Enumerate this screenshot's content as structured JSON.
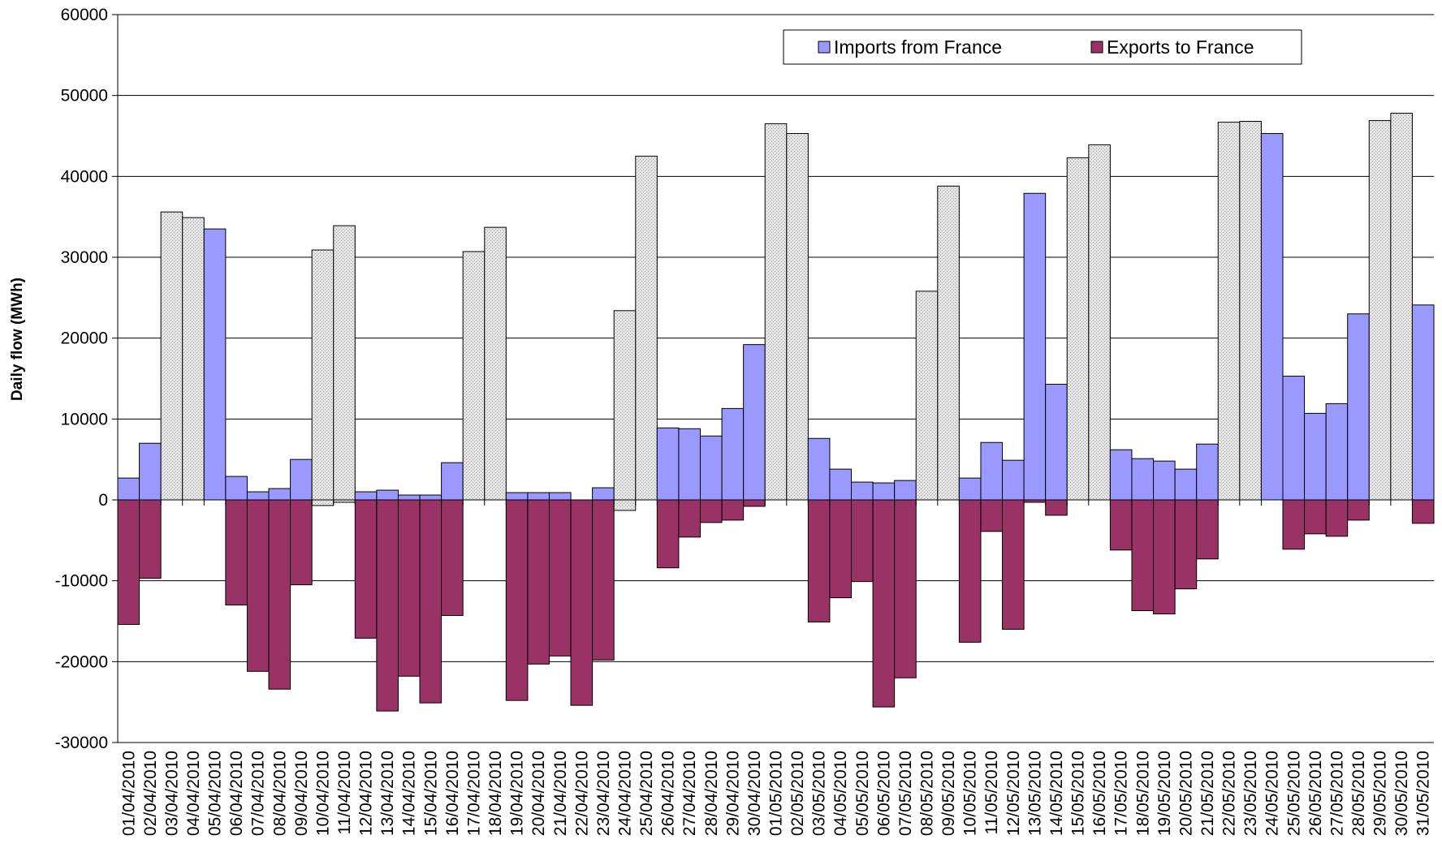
{
  "chart_data": {
    "type": "bar",
    "title": "",
    "xlabel": "",
    "ylabel": "Daily flow (MWh)",
    "ylim": [
      -30000,
      60000
    ],
    "yticks": [
      -30000,
      -20000,
      -10000,
      0,
      10000,
      20000,
      30000,
      40000,
      50000,
      60000
    ],
    "ytick_labels": [
      "-30000",
      "-20000",
      "-10000",
      "0",
      "10000",
      "20000",
      "30000",
      "40000",
      "50000",
      "60000"
    ],
    "grid": true,
    "legend_position": "top-right",
    "colors": {
      "imports": "#9999ff",
      "exports": "#993366",
      "highlight": "#d9d9d9"
    },
    "categories": [
      "01/04/2010",
      "02/04/2010",
      "03/04/2010",
      "04/04/2010",
      "05/04/2010",
      "06/04/2010",
      "07/04/2010",
      "08/04/2010",
      "09/04/2010",
      "10/04/2010",
      "11/04/2010",
      "12/04/2010",
      "13/04/2010",
      "14/04/2010",
      "15/04/2010",
      "16/04/2010",
      "17/04/2010",
      "18/04/2010",
      "19/04/2010",
      "20/04/2010",
      "21/04/2010",
      "22/04/2010",
      "23/04/2010",
      "24/04/2010",
      "25/04/2010",
      "26/04/2010",
      "27/04/2010",
      "28/04/2010",
      "29/04/2010",
      "30/04/2010",
      "01/05/2010",
      "02/05/2010",
      "03/05/2010",
      "04/05/2010",
      "05/05/2010",
      "06/05/2010",
      "07/05/2010",
      "08/05/2010",
      "09/05/2010",
      "10/05/2010",
      "11/05/2010",
      "12/05/2010",
      "13/05/2010",
      "14/05/2010",
      "15/05/2010",
      "16/05/2010",
      "17/05/2010",
      "18/05/2010",
      "19/05/2010",
      "20/05/2010",
      "21/05/2010",
      "22/05/2010",
      "23/05/2010",
      "24/05/2010",
      "25/05/2010",
      "26/05/2010",
      "27/05/2010",
      "28/05/2010",
      "29/05/2010",
      "30/05/2010",
      "31/05/2010"
    ],
    "highlighted_categories": [
      "03/04/2010",
      "04/04/2010",
      "10/04/2010",
      "11/04/2010",
      "17/04/2010",
      "18/04/2010",
      "24/04/2010",
      "25/04/2010",
      "01/05/2010",
      "02/05/2010",
      "08/05/2010",
      "09/05/2010",
      "15/05/2010",
      "16/05/2010",
      "22/05/2010",
      "23/05/2010",
      "29/05/2010",
      "30/05/2010"
    ],
    "series": [
      {
        "name": "Imports from France",
        "values": [
          2700,
          7000,
          35600,
          34900,
          33500,
          2900,
          1000,
          1400,
          5000,
          30900,
          33900,
          1000,
          1200,
          600,
          600,
          4600,
          30700,
          33700,
          900,
          900,
          900,
          0,
          1500,
          23400,
          42500,
          8900,
          8800,
          7900,
          11300,
          19200,
          46500,
          45300,
          7600,
          3800,
          2200,
          2100,
          2400,
          25800,
          38800,
          2700,
          7100,
          4900,
          37900,
          14300,
          42300,
          43900,
          6200,
          5100,
          4800,
          3800,
          6900,
          46700,
          46800,
          45300,
          15300,
          10700,
          11900,
          23000,
          46900,
          47800,
          24100
        ]
      },
      {
        "name": "Exports to France",
        "values": [
          -15400,
          -9700,
          0,
          0,
          0,
          -13000,
          -21200,
          -23400,
          -10500,
          -700,
          -300,
          -17100,
          -26100,
          -21800,
          -25100,
          -14300,
          0,
          0,
          -24800,
          -20300,
          -19300,
          -25400,
          -19800,
          -1300,
          0,
          -8400,
          -4600,
          -2800,
          -2500,
          -800,
          0,
          0,
          -15100,
          -12100,
          -10100,
          -25600,
          -22000,
          0,
          0,
          -17600,
          -3900,
          -16000,
          -300,
          -1900,
          0,
          0,
          -6200,
          -13700,
          -14100,
          -11000,
          -7300,
          0,
          0,
          0,
          -6100,
          -4200,
          -4500,
          -2500,
          0,
          0,
          -2900
        ]
      }
    ]
  }
}
